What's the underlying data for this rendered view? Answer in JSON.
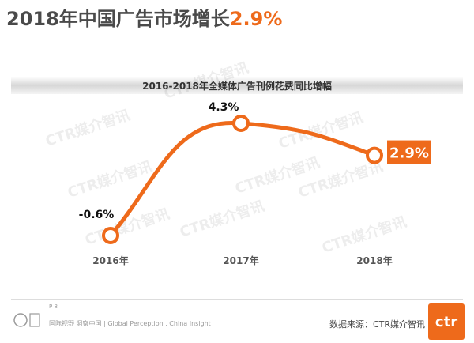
{
  "header": {
    "title_prefix": "2018年中国广告市场增长",
    "title_value": "2.9%"
  },
  "watermark": "CTR媒介智讯",
  "chart_data": {
    "type": "line",
    "title": "2016-2018年全媒体广告刊例花费同比增幅",
    "categories": [
      "2016年",
      "2017年",
      "2018年"
    ],
    "values": [
      -0.6,
      4.3,
      2.9
    ],
    "value_labels": [
      "-0.6%",
      "4.3%",
      "2.9%"
    ],
    "unit": "%",
    "highlight_index": 2,
    "line_color": "#ee6a1b",
    "ylim": [
      -1.5,
      5.0
    ]
  },
  "footer": {
    "page_marker": "P 8",
    "sub": "国际视野 洞察中国 | Global Perception , China Insight",
    "source": "数据来源：CTR媒介智讯",
    "logo": "ctr"
  }
}
